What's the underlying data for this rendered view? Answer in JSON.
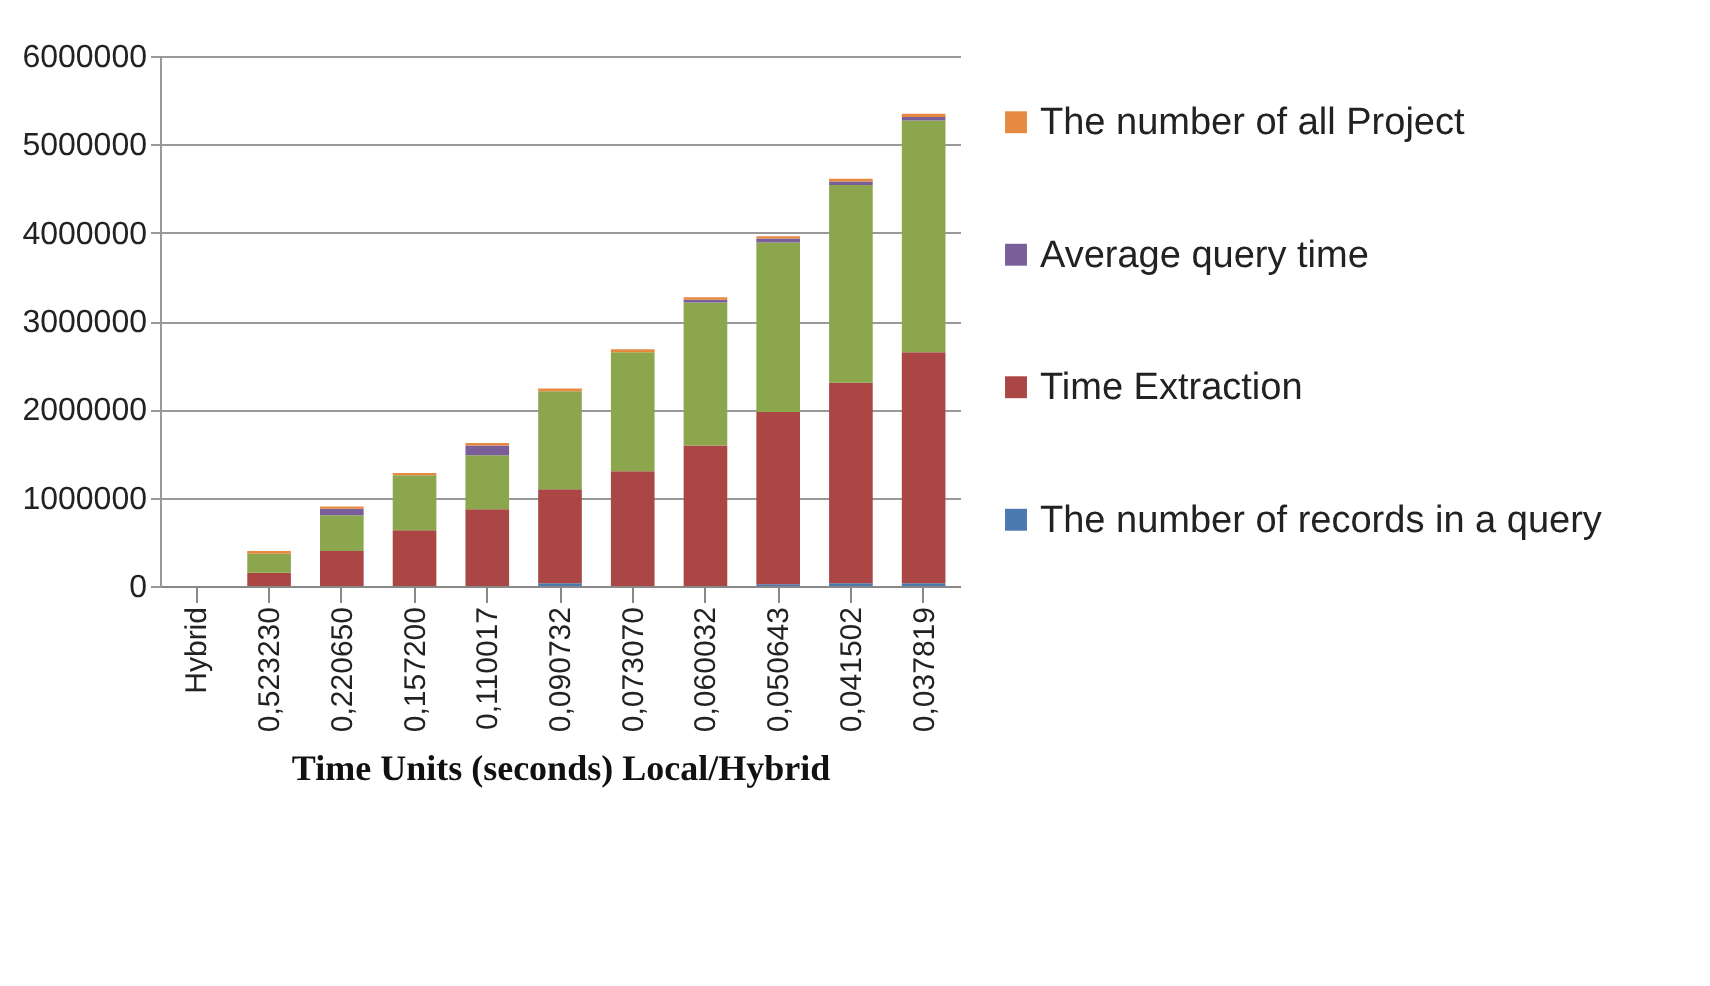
{
  "chart_data": {
    "type": "bar",
    "stacked": true,
    "xlabel": "Time Units (seconds) Local/Hybrid",
    "categories": [
      "Hybrid",
      "0,523230",
      "0,220650",
      "0,157200",
      "0,110017",
      "0,090732",
      "0,073070",
      "0,060032",
      "0,050643",
      "0,041502",
      "0,037819"
    ],
    "series": [
      {
        "name": "The number of records in a query",
        "color": "#4a7ab0",
        "values": [
          0,
          0,
          0,
          0,
          0,
          30000,
          0,
          0,
          20000,
          30000,
          30000
        ]
      },
      {
        "name": "Time Extraction",
        "color": "#aa4644",
        "values": [
          0,
          150000,
          395000,
          630000,
          870000,
          1065000,
          1300000,
          1590000,
          1950000,
          2270000,
          2615000
        ]
      },
      {
        "color": "#8ba64d",
        "values": [
          0,
          215000,
          405000,
          625000,
          610000,
          1110000,
          1345000,
          1620000,
          1920000,
          2240000,
          2625000
        ]
      },
      {
        "name": "Average query time",
        "color": "#7a5e9a",
        "values": [
          0,
          0,
          75000,
          0,
          110000,
          0,
          0,
          30000,
          45000,
          40000,
          40000
        ]
      },
      {
        "name": "The number of all Project",
        "color": "#e58a40",
        "values": [
          0,
          30000,
          25000,
          25000,
          30000,
          30000,
          35000,
          30000,
          25000,
          30000,
          35000
        ]
      }
    ],
    "ylim": [
      0,
      6000000
    ],
    "yticks": [
      0,
      1000000,
      2000000,
      3000000,
      4000000,
      5000000,
      6000000
    ],
    "grid": "y",
    "legend": "right"
  }
}
